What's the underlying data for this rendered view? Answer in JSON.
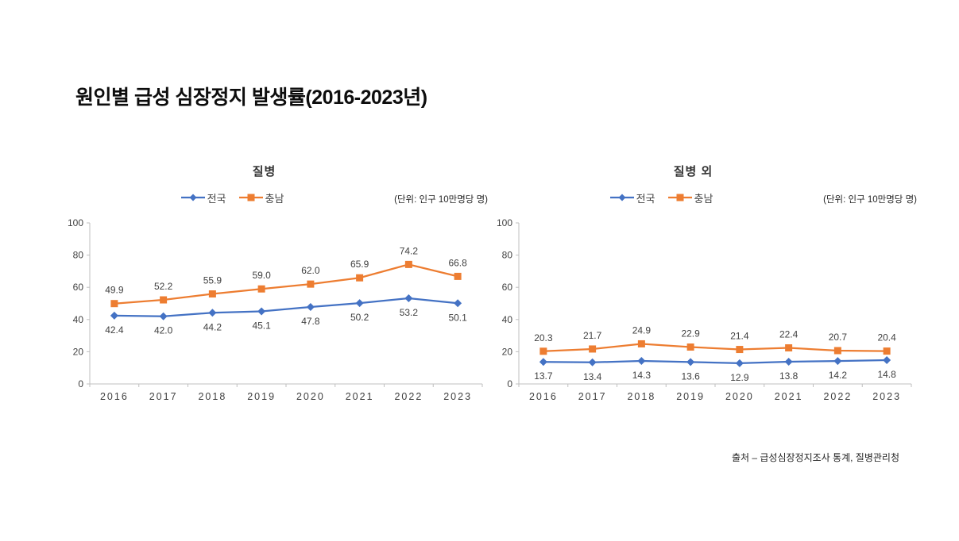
{
  "page": {
    "title": "원인별 급성 심장정지 발생률(2016-2023년)",
    "source": "출처 – 급성심장정지조사 통계, 질병관리청"
  },
  "colors": {
    "national_blue": "#4472C4",
    "chungnam_orange": "#ED7D31",
    "axis_gray": "#BFBFBF",
    "label_gray": "#404040"
  },
  "chart_data": [
    {
      "type": "line",
      "title": "질병",
      "unit": "(단위: 인구 10만명당 명)",
      "categories": [
        "2016",
        "2017",
        "2018",
        "2019",
        "2020",
        "2021",
        "2022",
        "2023"
      ],
      "series": [
        {
          "name": "전국",
          "color": "#4472C4",
          "marker": "diamond",
          "label_position": "below",
          "values": [
            42.4,
            42.0,
            44.2,
            45.1,
            47.8,
            50.2,
            53.2,
            50.1
          ]
        },
        {
          "name": "충남",
          "color": "#ED7D31",
          "marker": "square",
          "label_position": "above",
          "values": [
            49.9,
            52.2,
            55.9,
            59.0,
            62.0,
            65.9,
            74.2,
            66.8
          ]
        }
      ],
      "ylim": [
        0,
        100
      ],
      "yticks": [
        0,
        20,
        40,
        60,
        80,
        100
      ],
      "grid": false,
      "legend_position": "top"
    },
    {
      "type": "line",
      "title": "질병 외",
      "unit": "(단위: 인구 10만명당 명)",
      "categories": [
        "2016",
        "2017",
        "2018",
        "2019",
        "2020",
        "2021",
        "2022",
        "2023"
      ],
      "series": [
        {
          "name": "전국",
          "color": "#4472C4",
          "marker": "diamond",
          "label_position": "below",
          "values": [
            13.7,
            13.4,
            14.3,
            13.6,
            12.9,
            13.8,
            14.2,
            14.8
          ]
        },
        {
          "name": "충남",
          "color": "#ED7D31",
          "marker": "square",
          "label_position": "above",
          "values": [
            20.3,
            21.7,
            24.9,
            22.9,
            21.4,
            22.4,
            20.7,
            20.4
          ]
        }
      ],
      "ylim": [
        0,
        100
      ],
      "yticks": [
        0,
        20,
        40,
        60,
        80,
        100
      ],
      "grid": false,
      "legend_position": "top"
    }
  ]
}
